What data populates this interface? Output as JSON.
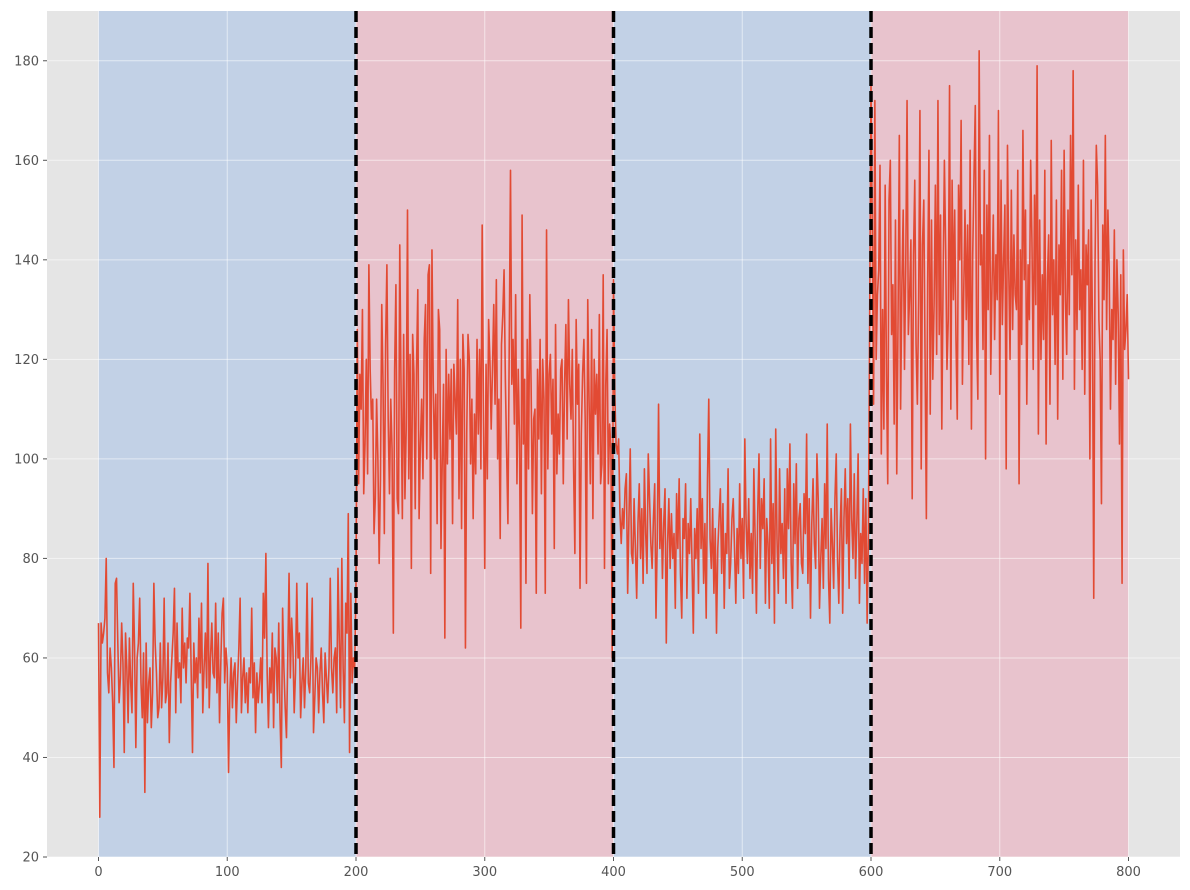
{
  "chart_data": {
    "type": "line",
    "title": "",
    "xlabel": "",
    "ylabel": "",
    "xlim": [
      -40,
      840
    ],
    "ylim": [
      20,
      190
    ],
    "x_ticks": [
      0,
      100,
      200,
      300,
      400,
      500,
      600,
      700,
      800
    ],
    "y_ticks": [
      20,
      40,
      60,
      80,
      100,
      120,
      140,
      160,
      180
    ],
    "grid": true,
    "legend": "none",
    "colors": {
      "line": "#e24a33",
      "plot_background": "#e5e5e5",
      "grid": "#ffffff",
      "segment_a": "#c2d1e6",
      "segment_b": "#e8c3cd",
      "changepoint": "#000000"
    },
    "segments": [
      {
        "start": 0,
        "end": 200,
        "mean": 58,
        "color_key": "segment_a"
      },
      {
        "start": 200,
        "end": 400,
        "mean": 113,
        "color_key": "segment_b"
      },
      {
        "start": 400,
        "end": 600,
        "mean": 84,
        "color_key": "segment_a"
      },
      {
        "start": 600,
        "end": 800,
        "mean": 133,
        "color_key": "segment_b"
      }
    ],
    "changepoints": [
      200,
      400,
      600
    ],
    "series": [
      {
        "x_start": 0,
        "x_step": 1,
        "values": [
          67,
          28,
          67,
          63,
          65,
          68,
          80,
          57,
          53,
          62,
          58,
          51,
          38,
          75,
          76,
          63,
          51,
          56,
          67,
          59,
          41,
          65,
          58,
          47,
          64,
          55,
          49,
          75,
          62,
          42,
          60,
          63,
          72,
          55,
          48,
          61,
          33,
          63,
          47,
          55,
          58,
          46,
          53,
          75,
          63,
          57,
          48,
          50,
          63,
          50,
          56,
          72,
          51,
          53,
          63,
          43,
          55,
          60,
          65,
          74,
          49,
          67,
          56,
          59,
          51,
          70,
          58,
          63,
          55,
          64,
          62,
          73,
          57,
          41,
          63,
          55,
          60,
          52,
          68,
          57,
          71,
          49,
          58,
          65,
          54,
          79,
          50,
          60,
          67,
          57,
          56,
          71,
          53,
          65,
          47,
          59,
          69,
          72,
          55,
          62,
          58,
          37,
          53,
          60,
          50,
          57,
          59,
          47,
          55,
          62,
          72,
          49,
          56,
          60,
          51,
          57,
          49,
          58,
          55,
          70,
          52,
          59,
          45,
          57,
          51,
          55,
          60,
          51,
          73,
          64,
          81,
          57,
          46,
          58,
          53,
          65,
          46,
          62,
          60,
          51,
          67,
          48,
          38,
          70,
          58,
          50,
          44,
          60,
          77,
          56,
          68,
          62,
          49,
          57,
          75,
          60,
          65,
          48,
          55,
          60,
          50,
          58,
          75,
          55,
          53,
          60,
          72,
          45,
          52,
          60,
          58,
          49,
          57,
          62,
          53,
          47,
          61,
          56,
          51,
          58,
          76,
          58,
          53,
          60,
          62,
          49,
          78,
          64,
          50,
          80,
          58,
          47,
          71,
          65,
          89,
          41,
          73,
          55,
          60,
          58,
          75,
          126,
          95,
          117,
          110,
          130,
          93,
          103,
          120,
          97,
          139,
          118,
          108,
          112,
          85,
          92,
          112,
          100,
          79,
          96,
          131,
          115,
          85,
          123,
          139,
          108,
          93,
          112,
          102,
          65,
          118,
          135,
          92,
          89,
          143,
          114,
          88,
          125,
          92,
          106,
          150,
          96,
          121,
          78,
          125,
          117,
          90,
          118,
          134,
          88,
          103,
          112,
          96,
          124,
          131,
          100,
          137,
          139,
          77,
          142,
          115,
          100,
          113,
          87,
          130,
          126,
          82,
          100,
          115,
          64,
          122,
          99,
          117,
          104,
          118,
          87,
          119,
          112,
          105,
          132,
          92,
          120,
          86,
          125,
          118,
          62,
          105,
          125,
          120,
          99,
          112,
          88,
          109,
          97,
          124,
          105,
          122,
          98,
          147,
          110,
          78,
          119,
          96,
          128,
          120,
          106,
          118,
          131,
          111,
          136,
          100,
          112,
          84,
          123,
          129,
          138,
          116,
          101,
          87,
          122,
          158,
          115,
          124,
          107,
          133,
          95,
          118,
          104,
          66,
          149,
          103,
          116,
          75,
          124,
          98,
          133,
          115,
          89,
          108,
          110,
          73,
          118,
          104,
          124,
          93,
          120,
          112,
          73,
          146,
          98,
          117,
          121,
          105,
          116,
          82,
          127,
          97,
          109,
          101,
          118,
          120,
          95,
          115,
          127,
          104,
          132,
          115,
          108,
          122,
          98,
          81,
          128,
          111,
          119,
          74,
          105,
          117,
          124,
          108,
          75,
          132,
          112,
          95,
          126,
          88,
          120,
          109,
          117,
          101,
          129,
          95,
          99,
          137,
          78,
          115,
          126,
          95,
          107,
          102,
          60,
          136,
          113,
          103,
          101,
          104,
          89,
          83,
          90,
          86,
          94,
          97,
          73,
          88,
          102,
          81,
          79,
          92,
          82,
          72,
          87,
          95,
          80,
          90,
          75,
          98,
          85,
          77,
          101,
          92,
          83,
          78,
          88,
          95,
          68,
          84,
          111,
          82,
          90,
          76,
          87,
          94,
          63,
          83,
          92,
          78,
          89,
          80,
          85,
          70,
          93,
          82,
          96,
          77,
          68,
          88,
          84,
          95,
          72,
          87,
          81,
          92,
          79,
          65,
          86,
          80,
          90,
          73,
          105,
          82,
          92,
          75,
          87,
          68,
          96,
          112,
          84,
          78,
          90,
          73,
          86,
          65,
          82,
          88,
          94,
          77,
          91,
          70,
          85,
          81,
          98,
          74,
          79,
          88,
          92,
          82,
          71,
          86,
          77,
          95,
          80,
          88,
          72,
          104,
          87,
          79,
          92,
          76,
          85,
          73,
          98,
          84,
          69,
          89,
          101,
          78,
          92,
          86,
          96,
          71,
          88,
          83,
          70,
          104,
          79,
          91,
          67,
          106,
          84,
          73,
          98,
          81,
          87,
          76,
          94,
          71,
          98,
          86,
          103,
          79,
          70,
          95,
          83,
          99,
          74,
          88,
          91,
          79,
          77,
          93,
          85,
          105,
          75,
          92,
          68,
          87,
          96,
          83,
          78,
          101,
          92,
          70,
          80,
          88,
          74,
          95,
          82,
          107,
          76,
          67,
          90,
          83,
          74,
          92,
          101,
          80,
          71,
          86,
          94,
          69,
          88,
          98,
          83,
          92,
          74,
          107,
          88,
          80,
          97,
          76,
          87,
          101,
          71,
          85,
          79,
          94,
          75,
          92,
          67,
          85,
          130,
          175,
          145,
          111,
          172,
          120,
          133,
          138,
          159,
          101,
          130,
          106,
          155,
          117,
          95,
          152,
          160,
          125,
          135,
          107,
          148,
          97,
          128,
          165,
          110,
          135,
          150,
          118,
          139,
          172,
          125,
          133,
          144,
          92,
          141,
          156,
          123,
          111,
          132,
          170,
          98,
          143,
          152,
          120,
          88,
          135,
          162,
          109,
          148,
          116,
          131,
          155,
          121,
          172,
          125,
          149,
          106,
          136,
          160,
          142,
          118,
          128,
          175,
          110,
          156,
          132,
          150,
          124,
          108,
          155,
          140,
          168,
          115,
          133,
          150,
          128,
          147,
          119,
          162,
          106,
          141,
          157,
          171,
          125,
          112,
          182,
          139,
          145,
          122,
          158,
          100,
          151,
          130,
          165,
          117,
          135,
          149,
          124,
          141,
          132,
          170,
          113,
          156,
          127,
          140,
          151,
          98,
          163,
          138,
          120,
          154,
          126,
          145,
          133,
          130,
          158,
          95,
          142,
          123,
          166,
          136,
          150,
          111,
          139,
          128,
          160,
          144,
          118,
          153,
          131,
          179,
          105,
          148,
          120,
          137,
          124,
          158,
          103,
          136,
          145,
          111,
          164,
          129,
          140,
          119,
          152,
          108,
          143,
          133,
          158,
          116,
          162,
          132,
          121,
          150,
          129,
          165,
          137,
          178,
          114,
          144,
          126,
          155,
          130,
          138,
          118,
          160,
          113,
          143,
          135,
          146,
          100,
          152,
          127,
          72,
          139,
          163,
          155,
          128,
          120,
          91,
          147,
          132,
          165,
          126,
          150,
          138,
          110,
          130,
          124,
          146,
          115,
          140,
          129,
          103,
          137,
          75,
          142,
          122,
          126,
          133,
          116
        ]
      }
    ]
  }
}
